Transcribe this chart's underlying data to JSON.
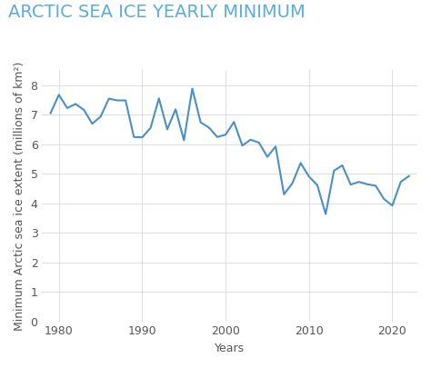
{
  "title": "ARCTIC SEA ICE YEARLY MINIMUM",
  "xlabel": "Years",
  "ylabel": "Minimum Arctic sea ice extent (millions of km²)",
  "line_color": "#4a90c4",
  "background_color": "#ffffff",
  "grid_color": "#d8d8d8",
  "title_color": "#5aace0",
  "tick_color": "#555555",
  "label_color": "#555555",
  "years": [
    1979,
    1980,
    1981,
    1982,
    1983,
    1984,
    1985,
    1986,
    1987,
    1988,
    1989,
    1990,
    1991,
    1992,
    1993,
    1994,
    1995,
    1996,
    1997,
    1998,
    1999,
    2000,
    2001,
    2002,
    2003,
    2004,
    2005,
    2006,
    2007,
    2008,
    2009,
    2010,
    2011,
    2012,
    2013,
    2014,
    2015,
    2016,
    2017,
    2018,
    2019,
    2020,
    2021,
    2022
  ],
  "values": [
    7.05,
    7.67,
    7.22,
    7.36,
    7.16,
    6.69,
    6.93,
    7.54,
    7.48,
    7.48,
    6.24,
    6.23,
    6.55,
    7.55,
    6.5,
    7.18,
    6.13,
    7.88,
    6.74,
    6.56,
    6.24,
    6.32,
    6.75,
    5.95,
    6.15,
    6.05,
    5.57,
    5.92,
    4.3,
    4.67,
    5.36,
    4.9,
    4.61,
    3.63,
    5.1,
    5.28,
    4.63,
    4.72,
    4.64,
    4.59,
    4.14,
    3.92,
    4.72,
    4.92
  ],
  "ylim": [
    0,
    8.5
  ],
  "xlim": [
    1978,
    2023
  ],
  "yticks": [
    0,
    1,
    2,
    3,
    4,
    5,
    6,
    7,
    8
  ],
  "xticks": [
    1980,
    1990,
    2000,
    2010,
    2020
  ],
  "title_fontsize": 14,
  "axis_label_fontsize": 9,
  "tick_fontsize": 9,
  "line_width": 1.5
}
